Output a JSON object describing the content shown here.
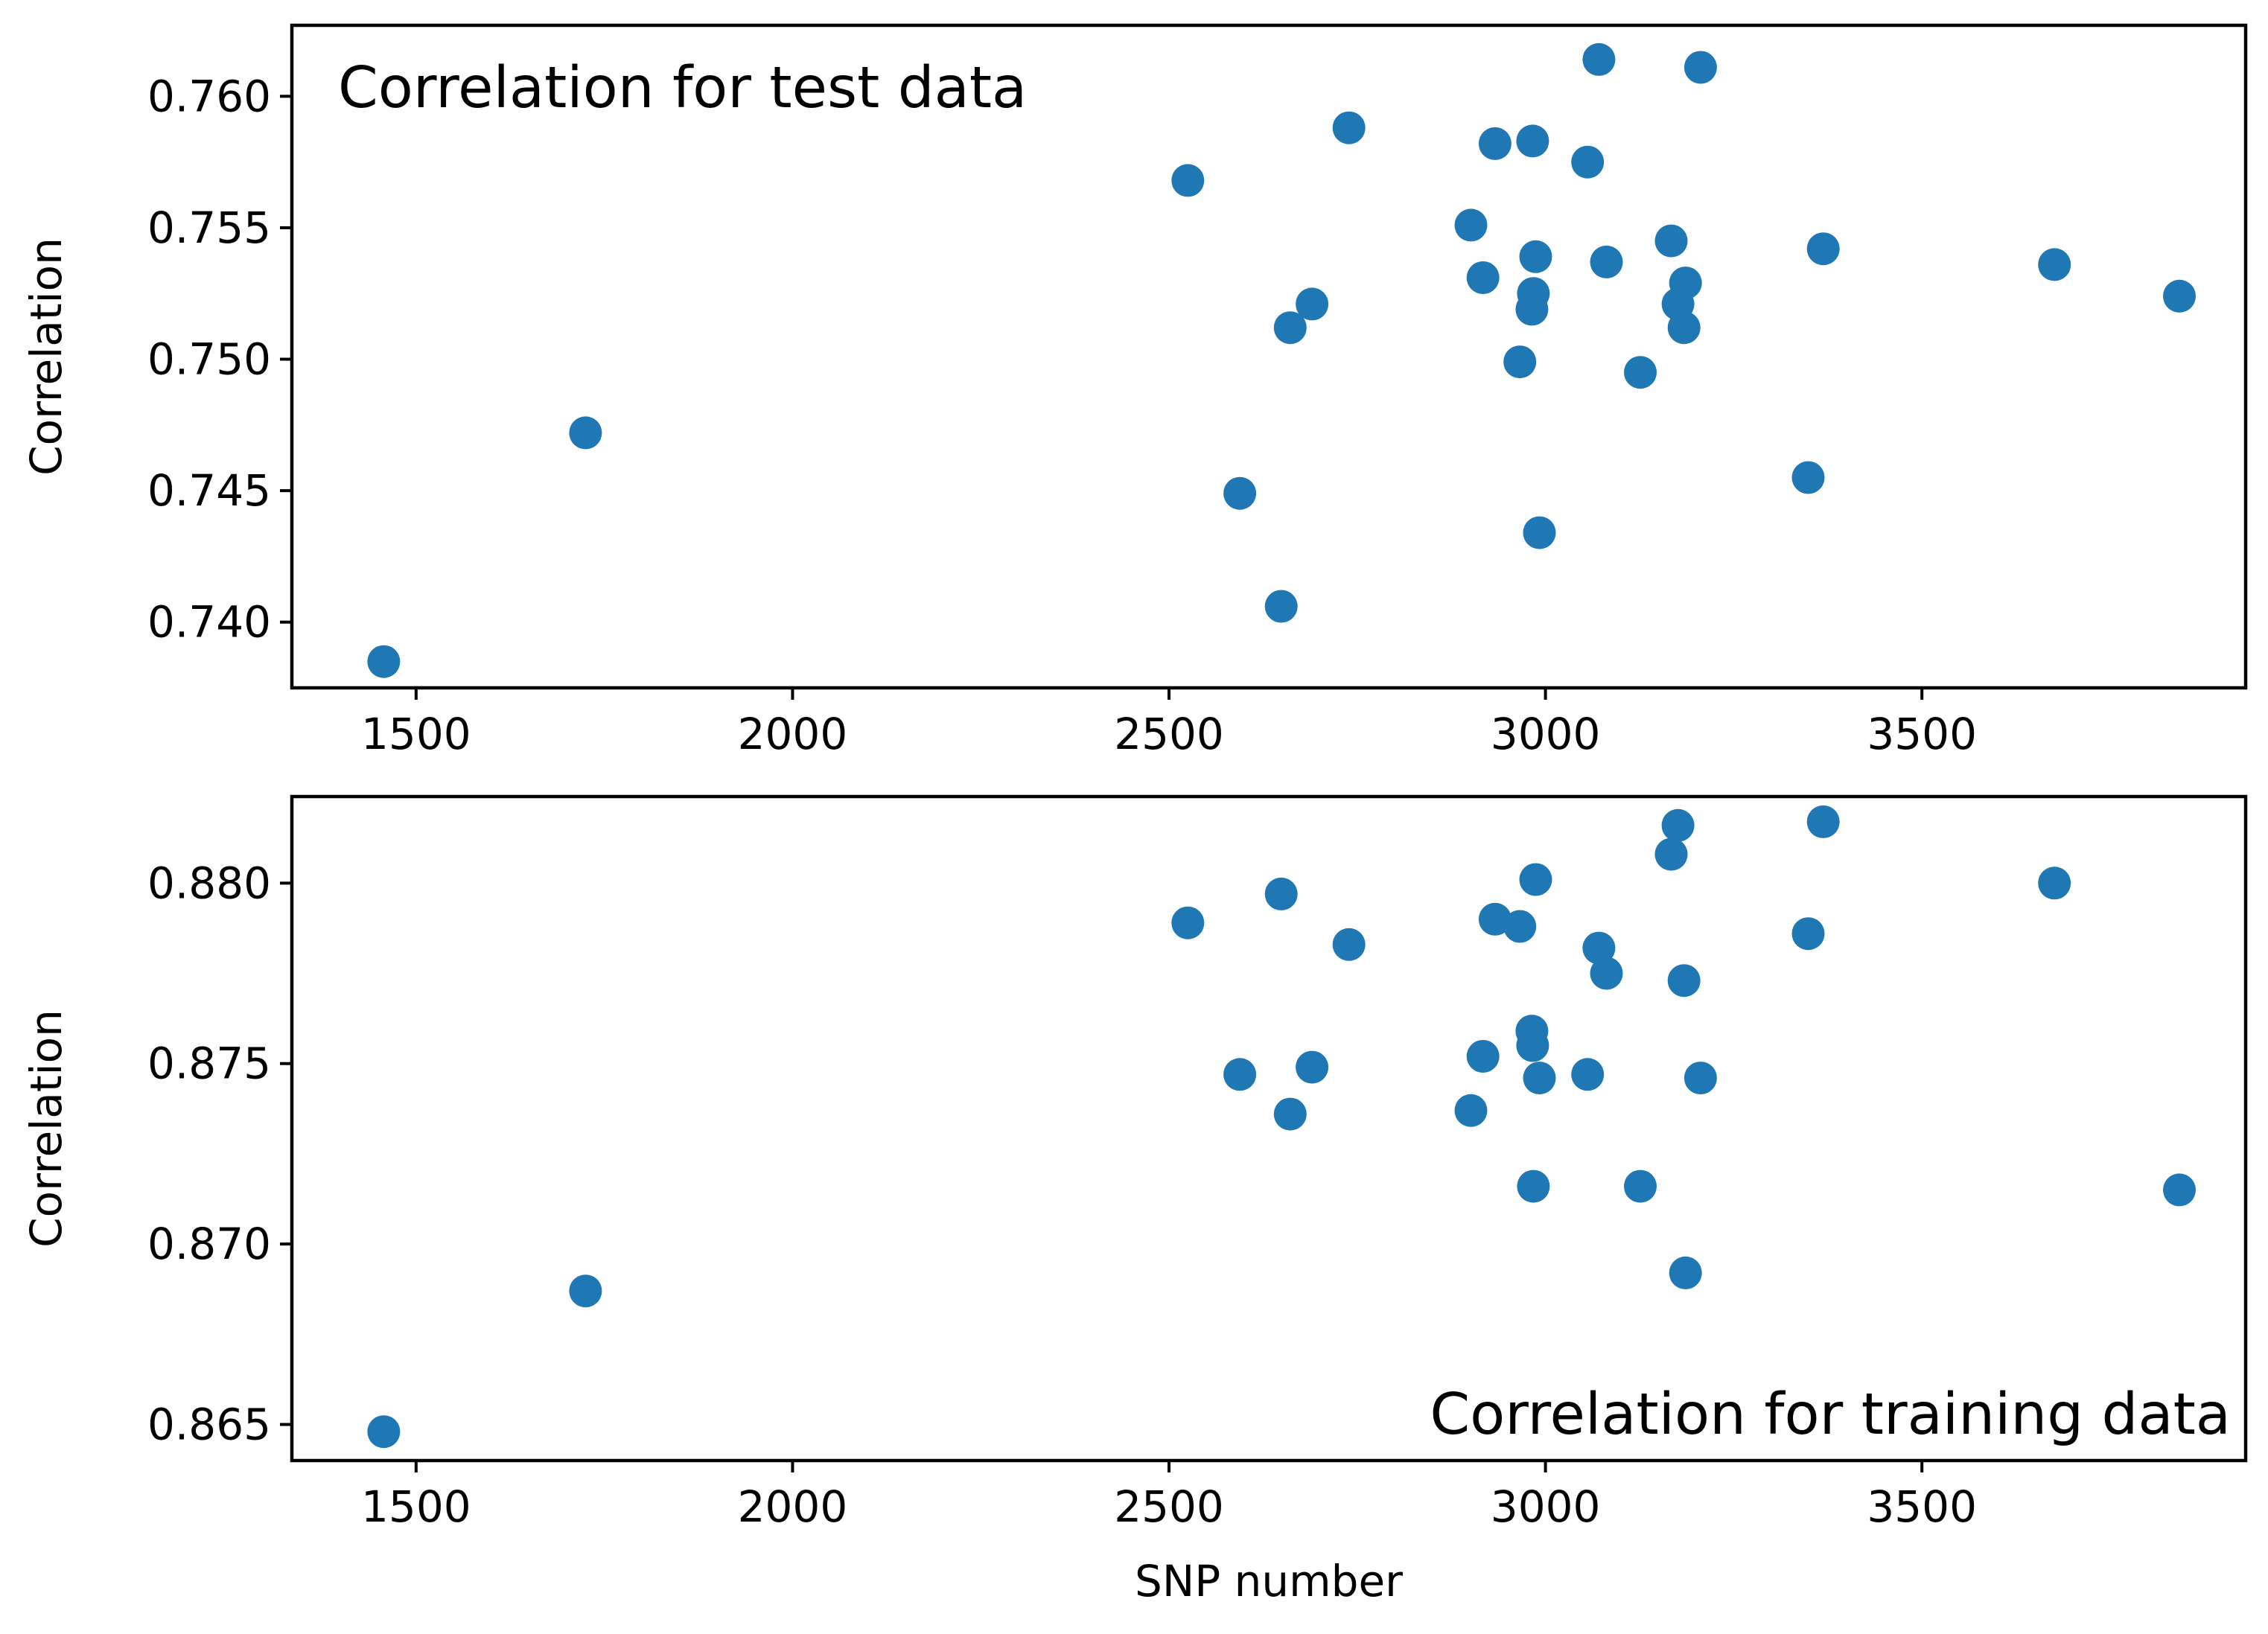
{
  "colors": {
    "marker": "#1f77b4",
    "axes": "#000000",
    "background": "#ffffff"
  },
  "chart_data": [
    {
      "type": "scatter",
      "annotation": "Correlation for test data",
      "annotation_location": "top-left",
      "xlabel": "",
      "ylabel": "Correlation",
      "xlim": [
        1335,
        3930
      ],
      "ylim": [
        0.7375,
        0.7627
      ],
      "xticks": [
        1500,
        2000,
        2500,
        3000,
        3500
      ],
      "xtick_labels": [
        "1500",
        "2000",
        "2500",
        "3000",
        "3500"
      ],
      "yticks": [
        0.74,
        0.745,
        0.75,
        0.755,
        0.76
      ],
      "ytick_labels": [
        "0.740",
        "0.745",
        "0.750",
        "0.755",
        "0.760"
      ],
      "points": [
        {
          "x": 1457,
          "y": 0.7385
        },
        {
          "x": 1725,
          "y": 0.7472
        },
        {
          "x": 2525,
          "y": 0.7568
        },
        {
          "x": 2594,
          "y": 0.7449
        },
        {
          "x": 2649,
          "y": 0.7406
        },
        {
          "x": 2661,
          "y": 0.7512
        },
        {
          "x": 2690,
          "y": 0.7521
        },
        {
          "x": 2739,
          "y": 0.7588
        },
        {
          "x": 2901,
          "y": 0.7551
        },
        {
          "x": 2917,
          "y": 0.7531
        },
        {
          "x": 2933,
          "y": 0.7582
        },
        {
          "x": 2966,
          "y": 0.7499
        },
        {
          "x": 2982,
          "y": 0.7519
        },
        {
          "x": 2983,
          "y": 0.7583
        },
        {
          "x": 2984,
          "y": 0.7525
        },
        {
          "x": 2987,
          "y": 0.7539
        },
        {
          "x": 2992,
          "y": 0.7434
        },
        {
          "x": 3056,
          "y": 0.7575
        },
        {
          "x": 3071,
          "y": 0.7614
        },
        {
          "x": 3081,
          "y": 0.7537
        },
        {
          "x": 3126,
          "y": 0.7495
        },
        {
          "x": 3167,
          "y": 0.7545
        },
        {
          "x": 3176,
          "y": 0.7521
        },
        {
          "x": 3184,
          "y": 0.7512
        },
        {
          "x": 3186,
          "y": 0.7529
        },
        {
          "x": 3206,
          "y": 0.7611
        },
        {
          "x": 3349,
          "y": 0.7455
        },
        {
          "x": 3369,
          "y": 0.7542
        },
        {
          "x": 3676,
          "y": 0.7536
        },
        {
          "x": 3842,
          "y": 0.7524
        }
      ]
    },
    {
      "type": "scatter",
      "annotation": "Correlation for training data",
      "annotation_location": "bottom-right",
      "xlabel": "SNP number",
      "ylabel": "Correlation",
      "xlim": [
        1335,
        3930
      ],
      "ylim": [
        0.864,
        0.8824
      ],
      "xticks": [
        1500,
        2000,
        2500,
        3000,
        3500
      ],
      "xtick_labels": [
        "1500",
        "2000",
        "2500",
        "3000",
        "3500"
      ],
      "yticks": [
        0.865,
        0.87,
        0.875,
        0.88
      ],
      "ytick_labels": [
        "0.865",
        "0.870",
        "0.875",
        "0.880"
      ],
      "points": [
        {
          "x": 1457,
          "y": 0.8648
        },
        {
          "x": 1725,
          "y": 0.8687
        },
        {
          "x": 2525,
          "y": 0.8789
        },
        {
          "x": 2594,
          "y": 0.8747
        },
        {
          "x": 2649,
          "y": 0.8797
        },
        {
          "x": 2661,
          "y": 0.8736
        },
        {
          "x": 2690,
          "y": 0.8749
        },
        {
          "x": 2739,
          "y": 0.8783
        },
        {
          "x": 2901,
          "y": 0.8737
        },
        {
          "x": 2917,
          "y": 0.8752
        },
        {
          "x": 2933,
          "y": 0.879
        },
        {
          "x": 2966,
          "y": 0.8788
        },
        {
          "x": 2982,
          "y": 0.8759
        },
        {
          "x": 2983,
          "y": 0.8755
        },
        {
          "x": 2984,
          "y": 0.8716
        },
        {
          "x": 2987,
          "y": 0.8801
        },
        {
          "x": 2992,
          "y": 0.8746
        },
        {
          "x": 3056,
          "y": 0.8747
        },
        {
          "x": 3071,
          "y": 0.8782
        },
        {
          "x": 3081,
          "y": 0.8775
        },
        {
          "x": 3126,
          "y": 0.8716
        },
        {
          "x": 3167,
          "y": 0.8808
        },
        {
          "x": 3176,
          "y": 0.8816
        },
        {
          "x": 3184,
          "y": 0.8773
        },
        {
          "x": 3186,
          "y": 0.8692
        },
        {
          "x": 3206,
          "y": 0.8746
        },
        {
          "x": 3349,
          "y": 0.8786
        },
        {
          "x": 3369,
          "y": 0.8817
        },
        {
          "x": 3676,
          "y": 0.88
        },
        {
          "x": 3842,
          "y": 0.8715
        }
      ]
    }
  ]
}
